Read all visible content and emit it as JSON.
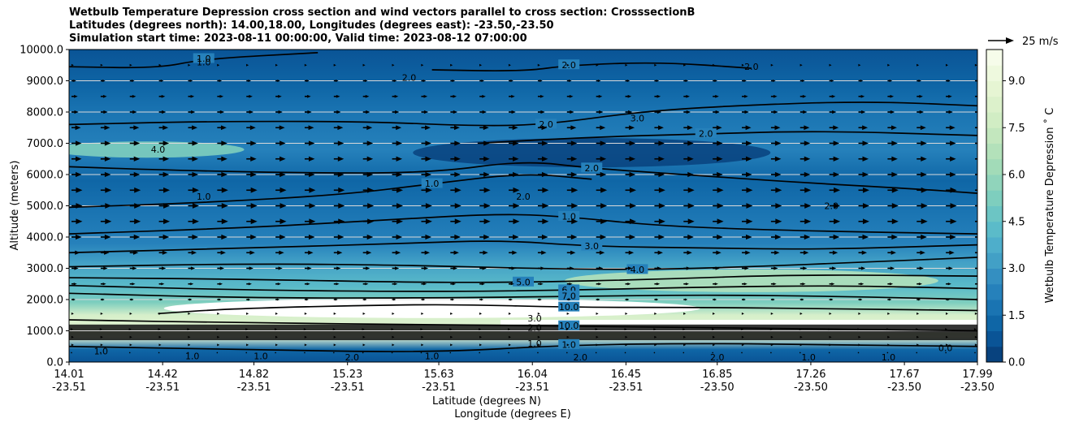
{
  "title": {
    "line1": "Wetbulb Temperature Depression cross section and wind vectors parallel to cross section: CrosssectionB",
    "line2": "Latitudes (degrees north): 14.00,18.00, Longitudes (degrees east): -23.50,-23.50",
    "line3": "Simulation start time: 2023-08-11 00:00:00, Valid time: 2023-08-12 07:00:00"
  },
  "quiver_key": {
    "label": "25 m/s",
    "speed": 25
  },
  "chart_data": {
    "type": "contour",
    "title": "Wetbulb Temperature Depression cross section and wind vectors parallel to cross section: CrosssectionB",
    "ylabel": "Altitude (meters)",
    "xlabel_line1": "Latitude (degrees N)",
    "xlabel_line2": "Longitude (degrees E)",
    "ylim": [
      0,
      10000
    ],
    "xlim": [
      14.01,
      17.99
    ],
    "y_ticks": [
      {
        "value": 0,
        "label": "0.0"
      },
      {
        "value": 1000,
        "label": "1000.0"
      },
      {
        "value": 2000,
        "label": "2000.0"
      },
      {
        "value": 3000,
        "label": "3000.0"
      },
      {
        "value": 4000,
        "label": "4000.0"
      },
      {
        "value": 5000,
        "label": "5000.0"
      },
      {
        "value": 6000,
        "label": "6000.0"
      },
      {
        "value": 7000,
        "label": "7000.0"
      },
      {
        "value": 8000,
        "label": "8000.0"
      },
      {
        "value": 9000,
        "label": "9000.0"
      },
      {
        "value": 10000,
        "label": "10000.0"
      }
    ],
    "x_ticks": [
      {
        "lat": 14.01,
        "lat_label": "14.01",
        "lon_label": "-23.51"
      },
      {
        "lat": 14.42,
        "lat_label": "14.42",
        "lon_label": "-23.51"
      },
      {
        "lat": 14.82,
        "lat_label": "14.82",
        "lon_label": "-23.51"
      },
      {
        "lat": 15.23,
        "lat_label": "15.23",
        "lon_label": "-23.51"
      },
      {
        "lat": 15.63,
        "lat_label": "15.63",
        "lon_label": "-23.51"
      },
      {
        "lat": 16.04,
        "lat_label": "16.04",
        "lon_label": "-23.51"
      },
      {
        "lat": 16.45,
        "lat_label": "16.45",
        "lon_label": "-23.51"
      },
      {
        "lat": 16.85,
        "lat_label": "16.85",
        "lon_label": "-23.50"
      },
      {
        "lat": 17.26,
        "lat_label": "17.26",
        "lon_label": "-23.50"
      },
      {
        "lat": 17.67,
        "lat_label": "17.67",
        "lon_label": "-23.50"
      },
      {
        "lat": 17.99,
        "lat_label": "17.99",
        "lon_label": "-23.50"
      }
    ],
    "colorbar": {
      "label": "Wetbulb Temperature Depression ˚ C",
      "range": [
        0,
        10
      ],
      "ticks": [
        {
          "value": 0,
          "label": "0.0"
        },
        {
          "value": 1.5,
          "label": "1.5"
        },
        {
          "value": 3,
          "label": "3.0"
        },
        {
          "value": 4.5,
          "label": "4.5"
        },
        {
          "value": 6,
          "label": "6.0"
        },
        {
          "value": 7.5,
          "label": "7.5"
        },
        {
          "value": 9,
          "label": "9.0"
        }
      ],
      "colors": [
        "#08427e",
        "#0a5496",
        "#0f66a6",
        "#1a74b2",
        "#2681bb",
        "#348fc1",
        "#42a0c6",
        "#4eaecb",
        "#5bbbc9",
        "#6cc5c4",
        "#7ecebe",
        "#90d4bb",
        "#a2dbb8",
        "#b3e1ba",
        "#c3e7be",
        "#d1edc4",
        "#dcf1cb",
        "#e6f5d3",
        "#eef9de",
        "#f6fcea"
      ]
    },
    "contour_lines": [
      {
        "level": 1.0,
        "label": "1.0",
        "points": [
          [
            14.01,
            9450
          ],
          [
            14.4,
            9400
          ],
          [
            14.6,
            9700
          ],
          [
            15.1,
            9900
          ]
        ]
      },
      {
        "level": 2.0,
        "label": "2.0",
        "points": [
          [
            15.6,
            9350
          ],
          [
            16.0,
            9300
          ],
          [
            16.2,
            9500
          ],
          [
            16.6,
            9600
          ],
          [
            17.0,
            9400
          ]
        ]
      },
      {
        "level": 2.0,
        "label": "2.0",
        "points": [
          [
            14.01,
            7600
          ],
          [
            14.6,
            7700
          ],
          [
            15.3,
            7700
          ],
          [
            15.8,
            7550
          ],
          [
            16.1,
            7600
          ],
          [
            16.5,
            8000
          ],
          [
            16.9,
            8200
          ],
          [
            17.5,
            8350
          ],
          [
            17.99,
            8200
          ]
        ]
      },
      {
        "level": 2.0,
        "label": "2.0",
        "points": [
          [
            15.8,
            7000
          ],
          [
            16.3,
            7200
          ],
          [
            16.8,
            7300
          ],
          [
            17.3,
            7400
          ],
          [
            17.99,
            7250
          ]
        ]
      },
      {
        "level": 2.0,
        "label": "2.0",
        "points": [
          [
            14.01,
            6250
          ],
          [
            14.4,
            6150
          ],
          [
            15.0,
            6050
          ],
          [
            15.6,
            6050
          ],
          [
            16.0,
            6450
          ],
          [
            16.3,
            6200
          ],
          [
            16.7,
            6000
          ],
          [
            17.2,
            5750
          ],
          [
            17.7,
            5550
          ],
          [
            17.99,
            5400
          ]
        ]
      },
      {
        "level": 1.0,
        "label": "1.0",
        "points": [
          [
            14.01,
            4950
          ],
          [
            14.6,
            5100
          ],
          [
            15.2,
            5350
          ],
          [
            15.6,
            5700
          ],
          [
            16.0,
            6050
          ],
          [
            16.3,
            5850
          ]
        ]
      },
      {
        "level": 1.0,
        "label": "1.0",
        "points": [
          [
            14.01,
            4100
          ],
          [
            14.8,
            4300
          ],
          [
            15.4,
            4550
          ],
          [
            15.9,
            4750
          ],
          [
            16.2,
            4650
          ],
          [
            16.6,
            4350
          ],
          [
            17.2,
            4200
          ],
          [
            17.99,
            4100
          ]
        ]
      },
      {
        "level": 3.0,
        "label": "3.0",
        "points": [
          [
            14.01,
            3500
          ],
          [
            14.8,
            3650
          ],
          [
            15.5,
            3800
          ],
          [
            15.9,
            3900
          ],
          [
            16.3,
            3700
          ],
          [
            16.8,
            3650
          ],
          [
            17.3,
            3600
          ],
          [
            17.99,
            3750
          ]
        ]
      },
      {
        "level": 4.0,
        "label": "4.0",
        "points": [
          [
            14.01,
            3050
          ],
          [
            14.8,
            3150
          ],
          [
            15.5,
            3100
          ],
          [
            16.0,
            3000
          ],
          [
            16.5,
            2950
          ],
          [
            17.0,
            3050
          ],
          [
            17.5,
            3200
          ],
          [
            17.99,
            3350
          ]
        ]
      },
      {
        "level": 5.0,
        "label": "5.0",
        "points": [
          [
            14.01,
            2700
          ],
          [
            14.8,
            2650
          ],
          [
            15.5,
            2550
          ],
          [
            16.0,
            2550
          ],
          [
            16.6,
            2650
          ],
          [
            17.2,
            2800
          ],
          [
            17.99,
            2750
          ]
        ]
      },
      {
        "level": 6.0,
        "label": "6.0",
        "points": [
          [
            14.01,
            2450
          ],
          [
            14.8,
            2300
          ],
          [
            15.6,
            2250
          ],
          [
            16.2,
            2300
          ],
          [
            16.8,
            2400
          ],
          [
            17.4,
            2450
          ],
          [
            17.99,
            2350
          ]
        ]
      },
      {
        "level": 7.0,
        "label": "7.0",
        "points": [
          [
            14.01,
            2200
          ],
          [
            14.8,
            2050
          ],
          [
            15.6,
            2050
          ],
          [
            16.2,
            2100
          ],
          [
            16.8,
            2150
          ],
          [
            17.4,
            2100
          ],
          [
            17.99,
            2000
          ]
        ]
      },
      {
        "level": 10.0,
        "label": "10.0",
        "points": [
          [
            14.4,
            1550
          ],
          [
            14.7,
            1700
          ],
          [
            15.2,
            1800
          ],
          [
            15.7,
            1850
          ],
          [
            16.2,
            1750
          ],
          [
            16.8,
            1750
          ],
          [
            17.4,
            1700
          ],
          [
            17.99,
            1650
          ]
        ]
      },
      {
        "level": 10.0,
        "label": "10.0",
        "points": [
          [
            14.01,
            1350
          ],
          [
            14.8,
            1250
          ],
          [
            15.6,
            1200
          ],
          [
            16.2,
            1150
          ],
          [
            16.8,
            1100
          ],
          [
            17.4,
            1050
          ],
          [
            17.99,
            1000
          ]
        ]
      },
      {
        "level": 1.0,
        "label": "1.0",
        "points": [
          [
            14.01,
            500
          ],
          [
            14.8,
            400
          ],
          [
            15.6,
            300
          ],
          [
            16.2,
            550
          ],
          [
            16.8,
            600
          ],
          [
            17.4,
            550
          ],
          [
            17.99,
            500
          ]
        ]
      }
    ],
    "extra_labels": [
      {
        "lat": 14.6,
        "alt": 9600,
        "text": "1.0"
      },
      {
        "lat": 17.0,
        "alt": 9450,
        "text": "2.0"
      },
      {
        "lat": 15.5,
        "alt": 9100,
        "text": "2.0"
      },
      {
        "lat": 16.5,
        "alt": 7800,
        "text": "3.0"
      },
      {
        "lat": 14.4,
        "alt": 6800,
        "text": "4.0"
      },
      {
        "lat": 17.35,
        "alt": 5000,
        "text": "2.0"
      },
      {
        "lat": 16.0,
        "alt": 5300,
        "text": "2.0"
      },
      {
        "lat": 14.6,
        "alt": 5300,
        "text": "1.0"
      },
      {
        "lat": 16.05,
        "alt": 1400,
        "text": "3.0"
      },
      {
        "lat": 16.05,
        "alt": 1100,
        "text": "2.0"
      },
      {
        "lat": 16.05,
        "alt": 600,
        "text": "1.0"
      },
      {
        "lat": 14.15,
        "alt": 350,
        "text": "1.0"
      },
      {
        "lat": 14.55,
        "alt": 200,
        "text": "1.0"
      },
      {
        "lat": 14.85,
        "alt": 200,
        "text": "1.0"
      },
      {
        "lat": 15.25,
        "alt": 150,
        "text": "2.0"
      },
      {
        "lat": 15.6,
        "alt": 200,
        "text": "1.0"
      },
      {
        "lat": 16.25,
        "alt": 150,
        "text": "2.0"
      },
      {
        "lat": 16.85,
        "alt": 150,
        "text": "2.0"
      },
      {
        "lat": 17.25,
        "alt": 150,
        "text": "1.0"
      },
      {
        "lat": 17.6,
        "alt": 150,
        "text": "1.0"
      },
      {
        "lat": 17.85,
        "alt": 450,
        "text": "0.0"
      }
    ],
    "wind_vectors": {
      "rows": [
        {
          "alt": 300,
          "speed": 0
        },
        {
          "alt": 550,
          "speed": 3
        },
        {
          "alt": 800,
          "speed": 3
        },
        {
          "alt": 1050,
          "speed": 2
        },
        {
          "alt": 1550,
          "speed": 3
        },
        {
          "alt": 2000,
          "speed": 5
        },
        {
          "alt": 2500,
          "speed": 7
        },
        {
          "alt": 3000,
          "speed": 9
        },
        {
          "alt": 3500,
          "speed": 11
        },
        {
          "alt": 4000,
          "speed": 13
        },
        {
          "alt": 4500,
          "speed": 14
        },
        {
          "alt": 5000,
          "speed": 14
        },
        {
          "alt": 5500,
          "speed": 14
        },
        {
          "alt": 6000,
          "speed": 13
        },
        {
          "alt": 6500,
          "speed": 13
        },
        {
          "alt": 7000,
          "speed": 13
        },
        {
          "alt": 7500,
          "speed": 12
        },
        {
          "alt": 8000,
          "speed": 9
        },
        {
          "alt": 8500,
          "speed": 8
        },
        {
          "alt": 9000,
          "speed": 6
        },
        {
          "alt": 9500,
          "speed": 3
        }
      ],
      "columns": 32
    }
  }
}
